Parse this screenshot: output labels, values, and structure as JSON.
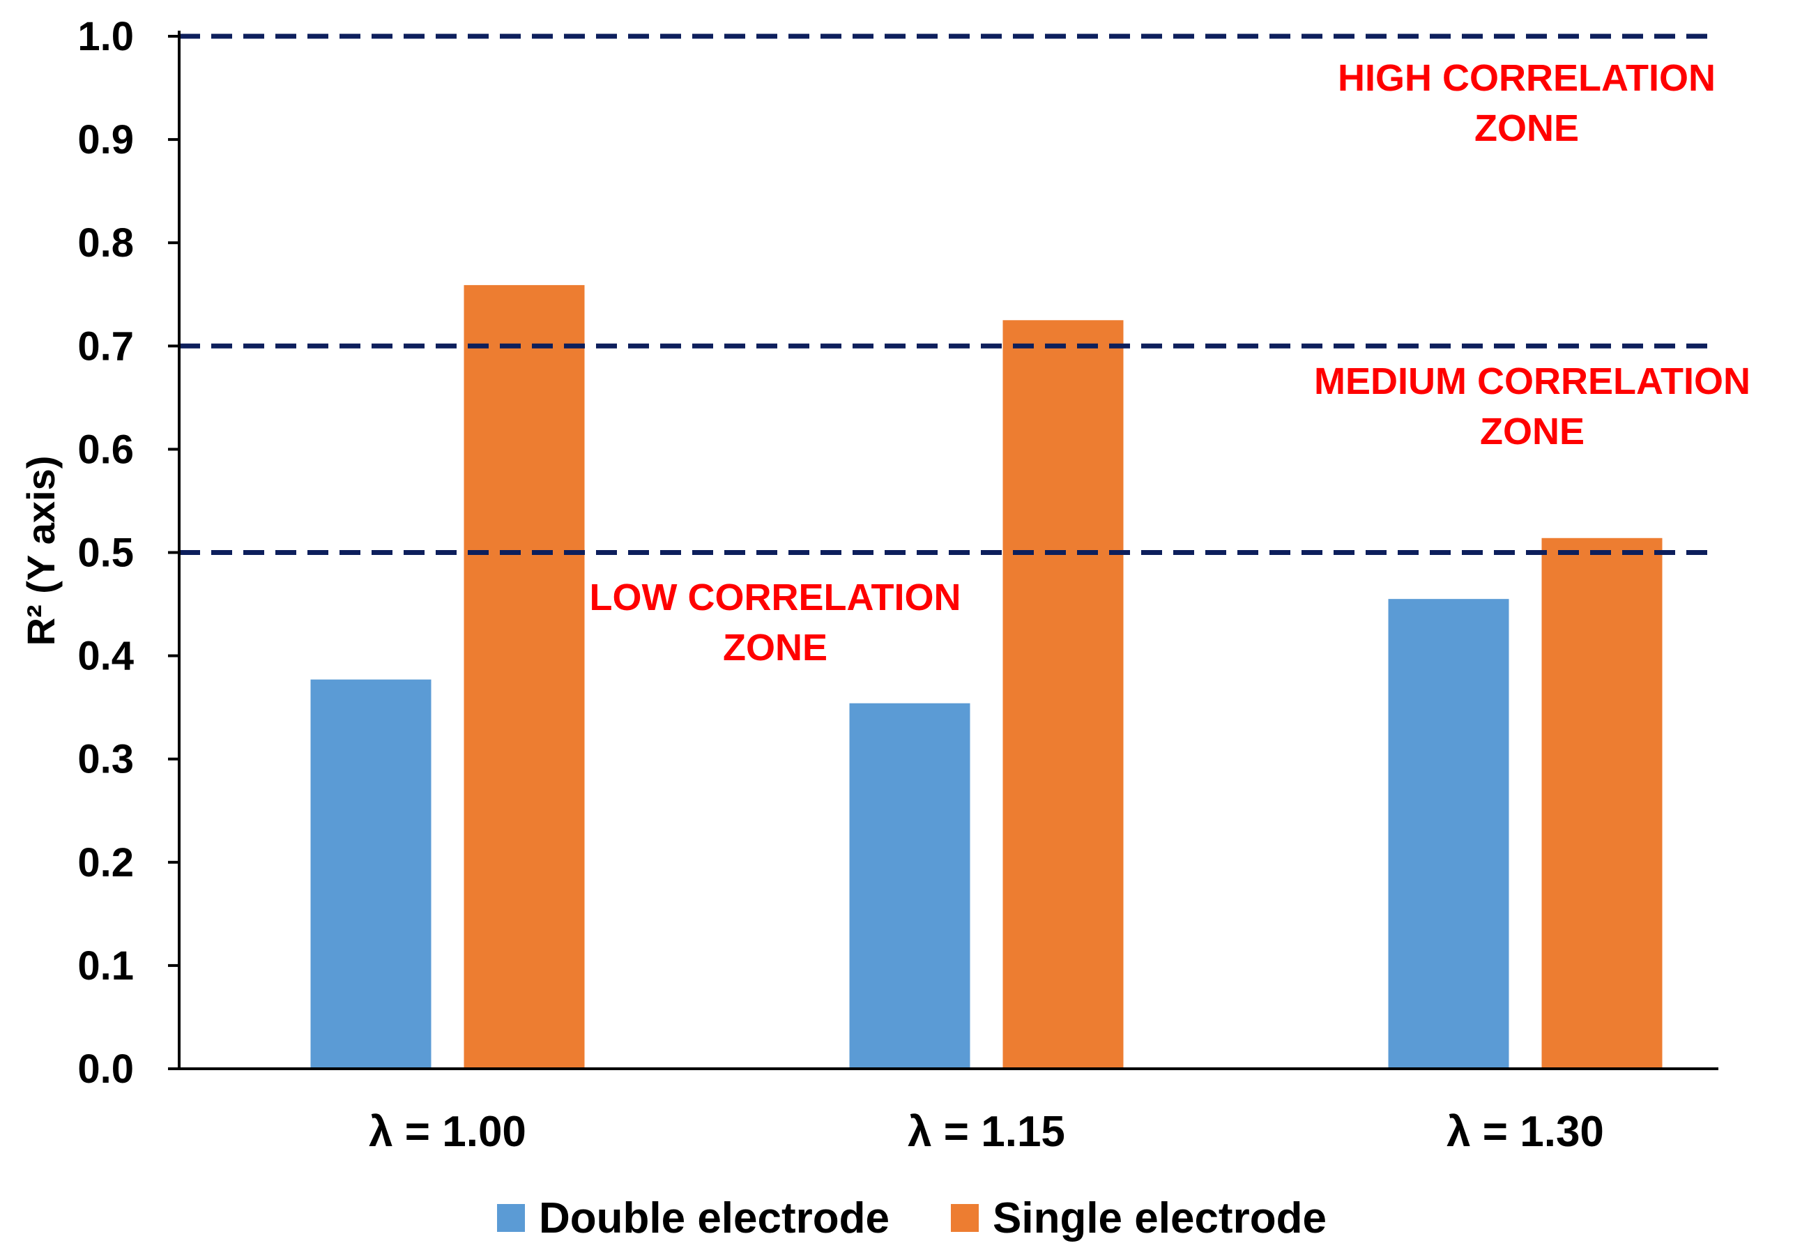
{
  "chart_data": {
    "type": "bar",
    "title": "",
    "xlabel": "",
    "ylabel": "R² (Y axis)",
    "ylim": [
      0,
      1.0
    ],
    "y_ticks": [
      "0.0",
      "0.1",
      "0.2",
      "0.3",
      "0.4",
      "0.5",
      "0.6",
      "0.7",
      "0.8",
      "0.9",
      "1.0"
    ],
    "categories": [
      "λ = 1.00",
      "λ = 1.15",
      "λ = 1.30"
    ],
    "series": [
      {
        "name": "Double electrode",
        "color": "#5b9bd5",
        "values": [
          0.377,
          0.354,
          0.455
        ]
      },
      {
        "name": "Single electrode",
        "color": "#ed7d31",
        "values": [
          0.759,
          0.725,
          0.514
        ]
      }
    ],
    "reference_lines": [
      {
        "value": 1.0,
        "color": "#0d1f5c",
        "style": "dashed"
      },
      {
        "value": 0.7,
        "color": "#0d1f5c",
        "style": "dashed"
      },
      {
        "value": 0.5,
        "color": "#0d1f5c",
        "style": "dashed"
      }
    ],
    "annotations": [
      {
        "lines": [
          "HIGH CORRELATION",
          "ZONE"
        ],
        "color": "#ff0000"
      },
      {
        "lines": [
          "MEDIUM CORRELATION",
          "ZONE"
        ],
        "color": "#ff0000"
      },
      {
        "lines": [
          "LOW CORRELATION",
          "ZONE"
        ],
        "color": "#ff0000"
      }
    ],
    "legend_position": "bottom",
    "grid": false
  }
}
